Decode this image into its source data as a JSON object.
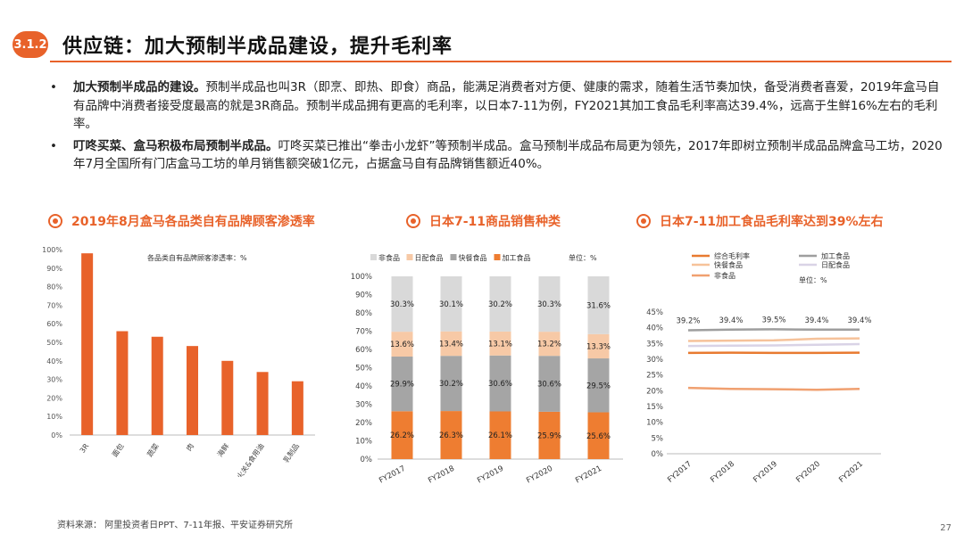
{
  "header": {
    "badge": "3.1.2",
    "title": "供应链：加大预制半成品建设，提升毛利率"
  },
  "bullets": [
    {
      "bold": "加大预制半成品的建设。",
      "text": "预制半成品也叫3R（即烹、即热、即食）商品，能满足消费者对方便、健康的需求，随着生活节奏加快，备受消费者喜爱，2019年盒马自有品牌中消费者接受度最高的就是3R商品。预制半成品拥有更高的毛利率，以日本7-11为例，FY2021其加工食品毛利率高达39.4%，远高于生鲜16%左右的毛利率。"
    },
    {
      "bold": "叮咚买菜、盒马积极布局预制半成品。",
      "text": "叮咚买菜已推出“拳击小龙虾”等预制半成品。盒马预制半成品布局更为领先，2017年即树立预制半成品品牌盒马工坊，2020年7月全国所有门店盒马工坊的单月销售额突破1亿元，占据盒马自有品牌销售额近40%。"
    }
  ],
  "footer": {
    "source": "资料来源：  阿里投资者日PPT、7-11年报、平安证券研究所",
    "page": "27"
  },
  "colors": {
    "accent": "#e8622a",
    "bar": "#e8622a"
  },
  "chart_data": [
    {
      "type": "bar",
      "title": "2019年8月盒马各品类自有品牌顾客渗透率",
      "legend": "各品类自有品牌顾客渗透率：%",
      "categories": [
        "3R",
        "面包",
        "蔬菜",
        "肉",
        "海鲜",
        "火关&食用油",
        "乳制品"
      ],
      "values": [
        98,
        56,
        53,
        48,
        40,
        34,
        29
      ],
      "ylim": [
        0,
        100
      ],
      "yticks": [
        "0%",
        "10%",
        "20%",
        "30%",
        "40%",
        "50%",
        "60%",
        "70%",
        "80%",
        "90%",
        "100%"
      ],
      "grid": false
    },
    {
      "type": "bar",
      "stacked": true,
      "title": "日本7-11商品销售种类",
      "unit": "单位：%",
      "categories": [
        "FY2017",
        "FY2018",
        "FY2019",
        "FY2020",
        "FY2021"
      ],
      "series": [
        {
          "name": "加工食品",
          "color": "#ee7d31",
          "values": [
            26.2,
            26.3,
            26.1,
            25.9,
            25.6
          ]
        },
        {
          "name": "快餐食品",
          "color": "#a5a5a5",
          "values": [
            29.9,
            30.2,
            30.6,
            30.6,
            29.5
          ]
        },
        {
          "name": "日配食品",
          "color": "#f7c9a6",
          "values": [
            13.6,
            13.4,
            13.1,
            13.2,
            13.3
          ]
        },
        {
          "name": "非食品",
          "color": "#d9d9d9",
          "values": [
            30.3,
            30.1,
            30.2,
            30.3,
            31.6
          ]
        }
      ],
      "legend_order": [
        "非食品",
        "日配食品",
        "快餐食品",
        "加工食品"
      ],
      "labels": [
        [
          "26.2%",
          "26.3%",
          "26.1%",
          "25.9%",
          "25.6%"
        ],
        [
          "29.9%",
          "30.2%",
          "30.6%",
          "30.6%",
          "29.5%"
        ],
        [
          "13.6%",
          "13.4%",
          "13.1%",
          "13.2%",
          "13.3%"
        ],
        [
          "30.3%",
          "30.1%",
          "30.2%",
          "30.3%",
          "31.6%"
        ]
      ],
      "ylim": [
        0,
        100
      ],
      "yticks": [
        "0%",
        "10%",
        "20%",
        "30%",
        "40%",
        "50%",
        "60%",
        "70%",
        "80%",
        "90%",
        "100%"
      ]
    },
    {
      "type": "line",
      "title": "日本7-11加工食品毛利率达到39%左右",
      "unit": "单位：%",
      "categories": [
        "FY2017",
        "FY2018",
        "FY2019",
        "FY2020",
        "FY2021"
      ],
      "series": [
        {
          "name": "综合毛利率",
          "color": "#e87a30",
          "values": [
            32.0,
            32.1,
            32.0,
            32.0,
            32.1
          ]
        },
        {
          "name": "加工食品",
          "color": "#9e9e9e",
          "values": [
            39.2,
            39.4,
            39.5,
            39.4,
            39.4
          ],
          "labels": [
            "39.2%",
            "39.4%",
            "39.5%",
            "39.4%",
            "39.4%"
          ]
        },
        {
          "name": "快餐食品",
          "color": "#f6c29a",
          "values": [
            35.8,
            35.9,
            36.0,
            36.5,
            36.6
          ]
        },
        {
          "name": "日配食品",
          "color": "#d9d3e6",
          "values": [
            34.2,
            34.3,
            34.4,
            34.6,
            34.8
          ]
        },
        {
          "name": "非食品",
          "color": "#f0a070",
          "values": [
            20.9,
            20.6,
            20.5,
            20.3,
            20.6
          ]
        }
      ],
      "ylim": [
        0,
        45
      ],
      "yticks": [
        "0%",
        "5%",
        "10%",
        "15%",
        "20%",
        "25%",
        "30%",
        "35%",
        "40%",
        "45%"
      ]
    }
  ]
}
